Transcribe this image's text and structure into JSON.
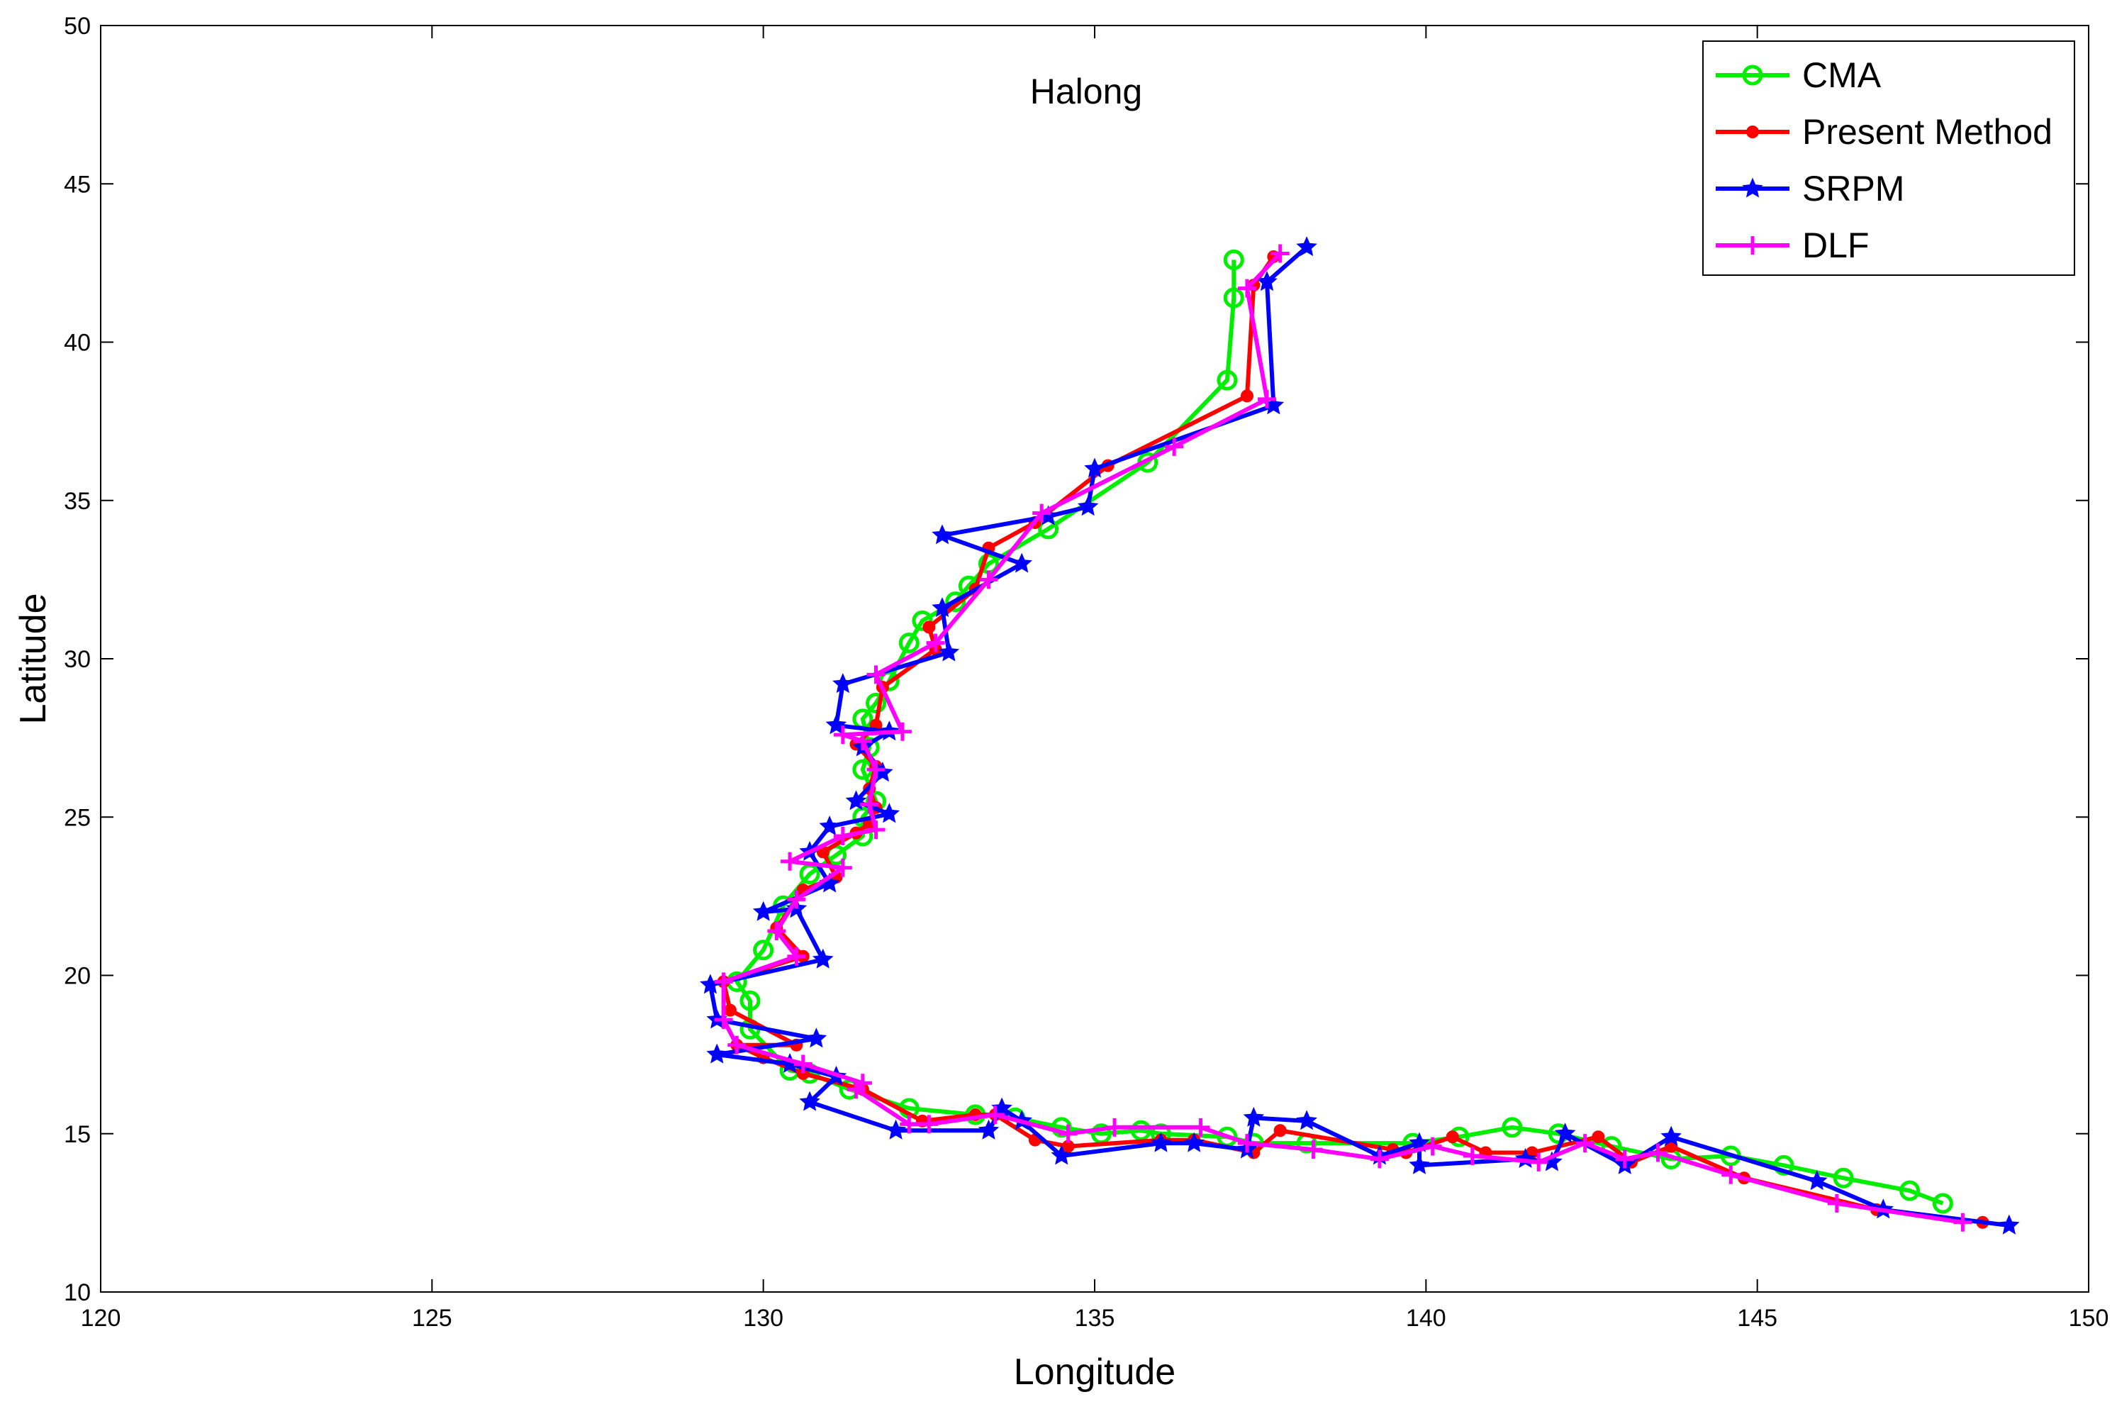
{
  "chart_data": {
    "type": "line",
    "title": "Halong",
    "xlabel": "Longitude",
    "ylabel": "Latitude",
    "xlim": [
      120,
      150
    ],
    "ylim": [
      10,
      50
    ],
    "xticks": [
      120,
      125,
      130,
      135,
      140,
      145,
      150
    ],
    "yticks": [
      10,
      15,
      20,
      25,
      30,
      35,
      40,
      45,
      50
    ],
    "xtick_labels": [
      "120",
      "125",
      "130",
      "135",
      "140",
      "145",
      "150"
    ],
    "ytick_labels": [
      "10",
      "15",
      "20",
      "25",
      "30",
      "35",
      "40",
      "45",
      "50"
    ],
    "grid": false,
    "legend_position": "top-right",
    "series": [
      {
        "name": "CMA",
        "color": "#00ee00",
        "marker": "circle",
        "points": [
          [
            147.8,
            12.8
          ],
          [
            147.3,
            13.2
          ],
          [
            146.3,
            13.6
          ],
          [
            145.4,
            14.0
          ],
          [
            144.6,
            14.3
          ],
          [
            143.7,
            14.2
          ],
          [
            142.8,
            14.6
          ],
          [
            142.0,
            15.0
          ],
          [
            141.3,
            15.2
          ],
          [
            140.5,
            14.9
          ],
          [
            139.8,
            14.7
          ],
          [
            138.2,
            14.7
          ],
          [
            137.4,
            14.7
          ],
          [
            137.0,
            14.9
          ],
          [
            136.0,
            15.0
          ],
          [
            135.7,
            15.1
          ],
          [
            135.1,
            15.0
          ],
          [
            134.5,
            15.2
          ],
          [
            133.8,
            15.5
          ],
          [
            133.2,
            15.6
          ],
          [
            132.2,
            15.8
          ],
          [
            131.3,
            16.4
          ],
          [
            130.7,
            16.9
          ],
          [
            130.4,
            17.0
          ],
          [
            129.8,
            18.3
          ],
          [
            129.8,
            19.2
          ],
          [
            129.6,
            19.8
          ],
          [
            130.0,
            20.8
          ],
          [
            130.3,
            22.2
          ],
          [
            130.7,
            23.2
          ],
          [
            131.1,
            23.8
          ],
          [
            131.5,
            24.4
          ],
          [
            131.5,
            25.0
          ],
          [
            131.7,
            25.5
          ],
          [
            131.5,
            26.5
          ],
          [
            131.6,
            27.2
          ],
          [
            131.5,
            28.1
          ],
          [
            131.7,
            28.6
          ],
          [
            131.9,
            29.3
          ],
          [
            132.2,
            30.5
          ],
          [
            132.4,
            31.2
          ],
          [
            132.9,
            31.8
          ],
          [
            133.1,
            32.3
          ],
          [
            133.4,
            33.0
          ],
          [
            134.3,
            34.1
          ],
          [
            135.8,
            36.2
          ],
          [
            137.0,
            38.8
          ],
          [
            137.1,
            41.4
          ],
          [
            137.1,
            42.6
          ]
        ]
      },
      {
        "name": "Present Method",
        "color": "#ff0000",
        "marker": "dot",
        "points": [
          [
            148.4,
            12.2
          ],
          [
            146.8,
            12.6
          ],
          [
            144.8,
            13.6
          ],
          [
            143.7,
            14.6
          ],
          [
            143.1,
            14.1
          ],
          [
            142.6,
            14.9
          ],
          [
            141.6,
            14.4
          ],
          [
            140.9,
            14.4
          ],
          [
            140.4,
            14.9
          ],
          [
            139.7,
            14.4
          ],
          [
            139.5,
            14.5
          ],
          [
            137.8,
            15.1
          ],
          [
            137.4,
            14.4
          ],
          [
            136.5,
            14.8
          ],
          [
            136.0,
            14.8
          ],
          [
            134.6,
            14.6
          ],
          [
            134.1,
            14.8
          ],
          [
            133.5,
            15.6
          ],
          [
            133.2,
            15.6
          ],
          [
            132.4,
            15.4
          ],
          [
            131.5,
            16.4
          ],
          [
            130.6,
            16.9
          ],
          [
            130.0,
            17.4
          ],
          [
            129.6,
            17.8
          ],
          [
            130.5,
            17.8
          ],
          [
            129.5,
            18.9
          ],
          [
            129.4,
            19.8
          ],
          [
            130.6,
            20.6
          ],
          [
            130.2,
            21.5
          ],
          [
            130.6,
            22.7
          ],
          [
            131.1,
            23.1
          ],
          [
            130.9,
            23.9
          ],
          [
            131.4,
            24.5
          ],
          [
            131.6,
            24.8
          ],
          [
            131.7,
            25.3
          ],
          [
            131.6,
            25.9
          ],
          [
            131.7,
            26.6
          ],
          [
            131.4,
            27.3
          ],
          [
            131.7,
            27.9
          ],
          [
            131.8,
            29.1
          ],
          [
            132.6,
            30.3
          ],
          [
            132.5,
            31.0
          ],
          [
            133.2,
            32.2
          ],
          [
            133.4,
            33.5
          ],
          [
            134.1,
            34.3
          ],
          [
            135.2,
            36.1
          ],
          [
            137.3,
            38.3
          ],
          [
            137.4,
            41.8
          ],
          [
            137.7,
            42.7
          ]
        ]
      },
      {
        "name": "SRPM",
        "color": "#0000ff",
        "marker": "star",
        "points": [
          [
            148.8,
            12.1
          ],
          [
            146.9,
            12.6
          ],
          [
            145.9,
            13.5
          ],
          [
            143.7,
            14.9
          ],
          [
            143.0,
            14.0
          ],
          [
            142.1,
            15.0
          ],
          [
            141.9,
            14.1
          ],
          [
            141.5,
            14.2
          ],
          [
            139.9,
            14.0
          ],
          [
            139.9,
            14.7
          ],
          [
            139.3,
            14.3
          ],
          [
            138.2,
            15.4
          ],
          [
            137.4,
            15.5
          ],
          [
            137.3,
            14.5
          ],
          [
            136.5,
            14.7
          ],
          [
            136.0,
            14.7
          ],
          [
            134.5,
            14.3
          ],
          [
            133.9,
            15.4
          ],
          [
            133.6,
            15.8
          ],
          [
            133.4,
            15.1
          ],
          [
            132.0,
            15.1
          ],
          [
            130.7,
            16.0
          ],
          [
            131.1,
            16.8
          ],
          [
            130.4,
            17.2
          ],
          [
            129.3,
            17.5
          ],
          [
            130.8,
            18.0
          ],
          [
            129.3,
            18.6
          ],
          [
            129.2,
            19.7
          ],
          [
            130.9,
            20.5
          ],
          [
            130.5,
            22.1
          ],
          [
            130.0,
            22.0
          ],
          [
            131.0,
            22.9
          ],
          [
            130.7,
            23.9
          ],
          [
            131.0,
            24.7
          ],
          [
            131.9,
            25.1
          ],
          [
            131.4,
            25.5
          ],
          [
            131.8,
            26.4
          ],
          [
            131.5,
            27.2
          ],
          [
            131.9,
            27.7
          ],
          [
            131.1,
            27.9
          ],
          [
            131.2,
            29.2
          ],
          [
            132.8,
            30.2
          ],
          [
            132.7,
            31.6
          ],
          [
            133.9,
            33.0
          ],
          [
            132.7,
            33.9
          ],
          [
            134.3,
            34.5
          ],
          [
            134.9,
            34.8
          ],
          [
            135.0,
            36.0
          ],
          [
            137.7,
            38.0
          ],
          [
            137.6,
            41.9
          ],
          [
            138.2,
            43.0
          ]
        ]
      },
      {
        "name": "DLF",
        "color": "#ff00ff",
        "marker": "plus",
        "points": [
          [
            148.1,
            12.2
          ],
          [
            146.2,
            12.8
          ],
          [
            144.6,
            13.7
          ],
          [
            143.5,
            14.4
          ],
          [
            143.0,
            14.2
          ],
          [
            142.4,
            14.7
          ],
          [
            141.7,
            14.1
          ],
          [
            140.7,
            14.3
          ],
          [
            140.1,
            14.6
          ],
          [
            139.3,
            14.2
          ],
          [
            138.3,
            14.5
          ],
          [
            137.3,
            14.7
          ],
          [
            136.6,
            15.2
          ],
          [
            135.3,
            15.2
          ],
          [
            134.6,
            15.0
          ],
          [
            133.5,
            15.6
          ],
          [
            132.5,
            15.3
          ],
          [
            132.2,
            15.3
          ],
          [
            131.4,
            16.4
          ],
          [
            131.5,
            16.6
          ],
          [
            130.6,
            17.2
          ],
          [
            129.6,
            17.8
          ],
          [
            129.4,
            18.6
          ],
          [
            129.4,
            19.8
          ],
          [
            130.5,
            20.6
          ],
          [
            130.2,
            21.4
          ],
          [
            130.5,
            22.4
          ],
          [
            131.2,
            23.4
          ],
          [
            130.4,
            23.6
          ],
          [
            131.2,
            24.4
          ],
          [
            131.7,
            24.6
          ],
          [
            131.6,
            25.4
          ],
          [
            131.7,
            26.5
          ],
          [
            131.5,
            27.4
          ],
          [
            131.2,
            27.6
          ],
          [
            132.1,
            27.7
          ],
          [
            131.7,
            29.5
          ],
          [
            132.6,
            30.5
          ],
          [
            133.4,
            32.5
          ],
          [
            134.2,
            34.6
          ],
          [
            136.2,
            36.7
          ],
          [
            137.6,
            38.2
          ],
          [
            137.3,
            41.7
          ],
          [
            137.8,
            42.8
          ]
        ]
      }
    ]
  }
}
